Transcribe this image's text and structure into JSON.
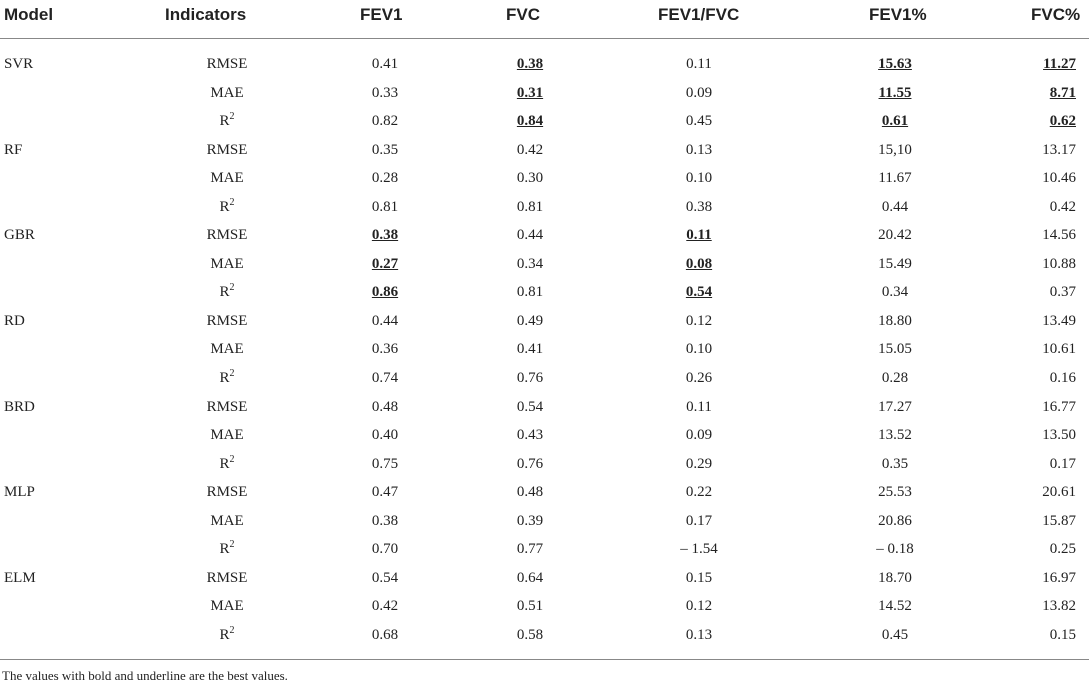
{
  "table": {
    "headers": [
      "Model",
      "Indicators",
      "FEV1",
      "FVC",
      "FEV1/FVC",
      "FEV1%",
      "FVC%"
    ],
    "groups": [
      {
        "model": "SVR",
        "rows": [
          {
            "ind": "RMSE",
            "vals": [
              "0.41",
              "0.38",
              "0.11",
              "15.63",
              "11.27"
            ],
            "best": [
              false,
              true,
              false,
              true,
              true
            ]
          },
          {
            "ind": "MAE",
            "vals": [
              "0.33",
              "0.31",
              "0.09",
              "11.55",
              "8.71"
            ],
            "best": [
              false,
              true,
              false,
              true,
              true
            ]
          },
          {
            "ind": "R2",
            "vals": [
              "0.82",
              "0.84",
              "0.45",
              "0.61",
              "0.62"
            ],
            "best": [
              false,
              true,
              false,
              true,
              true
            ]
          }
        ]
      },
      {
        "model": "RF",
        "rows": [
          {
            "ind": "RMSE",
            "vals": [
              "0.35",
              "0.42",
              "0.13",
              "15,10",
              "13.17"
            ],
            "best": [
              false,
              false,
              false,
              false,
              false
            ]
          },
          {
            "ind": "MAE",
            "vals": [
              "0.28",
              "0.30",
              "0.10",
              "11.67",
              "10.46"
            ],
            "best": [
              false,
              false,
              false,
              false,
              false
            ]
          },
          {
            "ind": "R2",
            "vals": [
              "0.81",
              "0.81",
              "0.38",
              "0.44",
              "0.42"
            ],
            "best": [
              false,
              false,
              false,
              false,
              false
            ]
          }
        ]
      },
      {
        "model": "GBR",
        "rows": [
          {
            "ind": "RMSE",
            "vals": [
              "0.38",
              "0.44",
              "0.11",
              "20.42",
              "14.56"
            ],
            "best": [
              true,
              false,
              true,
              false,
              false
            ]
          },
          {
            "ind": "MAE",
            "vals": [
              "0.27",
              "0.34",
              "0.08",
              "15.49",
              "10.88"
            ],
            "best": [
              true,
              false,
              true,
              false,
              false
            ]
          },
          {
            "ind": "R2",
            "vals": [
              "0.86",
              "0.81",
              "0.54",
              "0.34",
              "0.37"
            ],
            "best": [
              true,
              false,
              true,
              false,
              false
            ]
          }
        ]
      },
      {
        "model": "RD",
        "rows": [
          {
            "ind": "RMSE",
            "vals": [
              "0.44",
              "0.49",
              "0.12",
              "18.80",
              "13.49"
            ],
            "best": [
              false,
              false,
              false,
              false,
              false
            ]
          },
          {
            "ind": "MAE",
            "vals": [
              "0.36",
              "0.41",
              "0.10",
              "15.05",
              "10.61"
            ],
            "best": [
              false,
              false,
              false,
              false,
              false
            ]
          },
          {
            "ind": "R2",
            "vals": [
              "0.74",
              "0.76",
              "0.26",
              "0.28",
              "0.16"
            ],
            "best": [
              false,
              false,
              false,
              false,
              false
            ]
          }
        ]
      },
      {
        "model": "BRD",
        "rows": [
          {
            "ind": "RMSE",
            "vals": [
              "0.48",
              "0.54",
              "0.11",
              "17.27",
              "16.77"
            ],
            "best": [
              false,
              false,
              false,
              false,
              false
            ]
          },
          {
            "ind": "MAE",
            "vals": [
              "0.40",
              "0.43",
              "0.09",
              "13.52",
              "13.50"
            ],
            "best": [
              false,
              false,
              false,
              false,
              false
            ]
          },
          {
            "ind": "R2",
            "vals": [
              "0.75",
              "0.76",
              "0.29",
              "0.35",
              "0.17"
            ],
            "best": [
              false,
              false,
              false,
              false,
              false
            ]
          }
        ]
      },
      {
        "model": "MLP",
        "rows": [
          {
            "ind": "RMSE",
            "vals": [
              "0.47",
              "0.48",
              "0.22",
              "25.53",
              "20.61"
            ],
            "best": [
              false,
              false,
              false,
              false,
              false
            ]
          },
          {
            "ind": "MAE",
            "vals": [
              "0.38",
              "0.39",
              "0.17",
              "20.86",
              "15.87"
            ],
            "best": [
              false,
              false,
              false,
              false,
              false
            ]
          },
          {
            "ind": "R2",
            "vals": [
              "0.70",
              "0.77",
              "– 1.54",
              "– 0.18",
              "0.25"
            ],
            "best": [
              false,
              false,
              false,
              false,
              false
            ]
          }
        ]
      },
      {
        "model": "ELM",
        "rows": [
          {
            "ind": "RMSE",
            "vals": [
              "0.54",
              "0.64",
              "0.15",
              "18.70",
              "16.97"
            ],
            "best": [
              false,
              false,
              false,
              false,
              false
            ]
          },
          {
            "ind": "MAE",
            "vals": [
              "0.42",
              "0.51",
              "0.12",
              "14.52",
              "13.82"
            ],
            "best": [
              false,
              false,
              false,
              false,
              false
            ]
          },
          {
            "ind": "R2",
            "vals": [
              "0.68",
              "0.58",
              "0.13",
              "0.45",
              "0.15"
            ],
            "best": [
              false,
              false,
              false,
              false,
              false
            ]
          }
        ]
      }
    ]
  },
  "footnote": "The values with bold and underline are the best values."
}
